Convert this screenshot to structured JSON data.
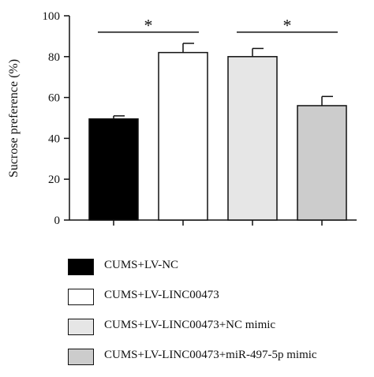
{
  "chart_data": {
    "type": "bar",
    "title": "",
    "xlabel": "",
    "ylabel": "Sucrose preference (%)",
    "ylim": [
      0,
      100
    ],
    "yticks": [
      0,
      20,
      40,
      60,
      80,
      100
    ],
    "grid": false,
    "legend_position": "bottom",
    "categories": [
      "CUMS+LV-NC",
      "CUMS+LV-LINC00473",
      "CUMS+LV-LINC00473+NC mimic",
      "CUMS+LV-LINC00473+miR-497-5p mimic"
    ],
    "values": [
      49.5,
      82,
      80,
      56
    ],
    "errors": [
      1.5,
      4.5,
      4,
      4.5
    ],
    "colors": [
      "#000000",
      "#ffffff",
      "#e6e6e6",
      "#cccccc"
    ],
    "significance": [
      {
        "between": [
          0,
          1
        ],
        "label": "*"
      },
      {
        "between": [
          2,
          3
        ],
        "label": "*"
      }
    ]
  }
}
